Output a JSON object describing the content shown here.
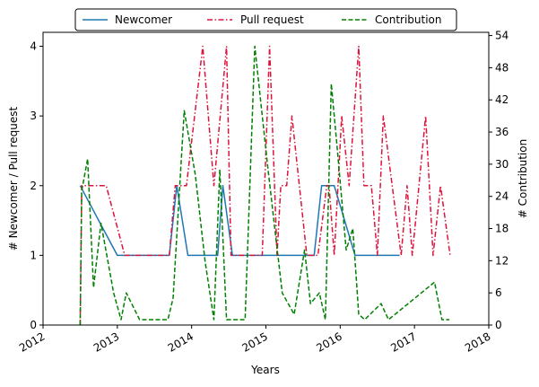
{
  "chart_data": {
    "type": "line",
    "xlabel": "Years",
    "ylabel_left": "# Newcomer / Pull request",
    "ylabel_right": "# Contribution",
    "xlim": [
      2012,
      2018
    ],
    "ylim_left": [
      0,
      4.2
    ],
    "ylim_right": [
      0,
      54.6
    ],
    "x_ticks": [
      "2012",
      "2013",
      "2014",
      "2015",
      "2016",
      "2017",
      "2018"
    ],
    "y_ticks_left": [
      "0",
      "1",
      "2",
      "3",
      "4"
    ],
    "y_ticks_right": [
      "0",
      "6",
      "12",
      "18",
      "24",
      "30",
      "36",
      "42",
      "48",
      "54"
    ],
    "grid": false,
    "legend_position": "top-center, above the axes",
    "series": [
      {
        "name": "Newcomer",
        "axis": "left",
        "color": "#1f77b4",
        "style": "solid",
        "points": [
          [
            2012.5,
            2
          ],
          [
            2013.0,
            1
          ],
          [
            2013.7,
            1
          ],
          [
            2013.8,
            2
          ],
          [
            2013.95,
            1
          ],
          [
            2014.35,
            1
          ],
          [
            2014.42,
            2
          ],
          [
            2014.55,
            1
          ],
          [
            2015.65,
            1
          ],
          [
            2015.75,
            2
          ],
          [
            2015.92,
            2
          ],
          [
            2016.2,
            1
          ],
          [
            2016.8,
            1
          ]
        ]
      },
      {
        "name": "Pull request",
        "axis": "left",
        "color": "#dc143c",
        "style": "dashdot",
        "points": [
          [
            2012.5,
            0
          ],
          [
            2012.52,
            2
          ],
          [
            2012.85,
            2
          ],
          [
            2013.1,
            1
          ],
          [
            2013.7,
            1
          ],
          [
            2013.78,
            2
          ],
          [
            2013.93,
            2
          ],
          [
            2014.15,
            4
          ],
          [
            2014.3,
            2
          ],
          [
            2014.47,
            4
          ],
          [
            2014.53,
            1
          ],
          [
            2014.95,
            1
          ],
          [
            2015.05,
            4
          ],
          [
            2015.15,
            1
          ],
          [
            2015.2,
            2
          ],
          [
            2015.28,
            2
          ],
          [
            2015.35,
            3
          ],
          [
            2015.45,
            2
          ],
          [
            2015.55,
            1
          ],
          [
            2015.7,
            1
          ],
          [
            2015.82,
            2
          ],
          [
            2015.85,
            2
          ],
          [
            2015.92,
            1
          ],
          [
            2016.02,
            3
          ],
          [
            2016.12,
            2
          ],
          [
            2016.25,
            4
          ],
          [
            2016.32,
            2
          ],
          [
            2016.42,
            2
          ],
          [
            2016.5,
            1
          ],
          [
            2016.58,
            3
          ],
          [
            2016.7,
            2
          ],
          [
            2016.82,
            1
          ],
          [
            2016.9,
            2
          ],
          [
            2016.97,
            1
          ],
          [
            2017.15,
            3
          ],
          [
            2017.25,
            1
          ],
          [
            2017.35,
            2
          ],
          [
            2017.48,
            1
          ]
        ]
      },
      {
        "name": "Contribution",
        "axis": "right",
        "color": "#008000",
        "style": "dashed",
        "points": [
          [
            2012.5,
            0
          ],
          [
            2012.52,
            25
          ],
          [
            2012.6,
            31
          ],
          [
            2012.68,
            7
          ],
          [
            2012.78,
            19
          ],
          [
            2012.95,
            6
          ],
          [
            2013.05,
            1
          ],
          [
            2013.12,
            6
          ],
          [
            2013.3,
            1
          ],
          [
            2013.68,
            1
          ],
          [
            2013.75,
            5
          ],
          [
            2013.9,
            40
          ],
          [
            2014.05,
            28
          ],
          [
            2014.18,
            12
          ],
          [
            2014.3,
            1
          ],
          [
            2014.38,
            29
          ],
          [
            2014.47,
            1
          ],
          [
            2014.72,
            1
          ],
          [
            2014.85,
            52
          ],
          [
            2015.02,
            30
          ],
          [
            2015.12,
            18
          ],
          [
            2015.22,
            6
          ],
          [
            2015.38,
            2
          ],
          [
            2015.52,
            14
          ],
          [
            2015.6,
            4
          ],
          [
            2015.72,
            6
          ],
          [
            2015.8,
            1
          ],
          [
            2015.88,
            45
          ],
          [
            2015.96,
            33
          ],
          [
            2016.08,
            14
          ],
          [
            2016.17,
            18
          ],
          [
            2016.25,
            2
          ],
          [
            2016.33,
            1
          ],
          [
            2016.55,
            4
          ],
          [
            2016.65,
            1
          ],
          [
            2017.27,
            8
          ],
          [
            2017.37,
            1
          ],
          [
            2017.47,
            1
          ]
        ]
      }
    ]
  }
}
